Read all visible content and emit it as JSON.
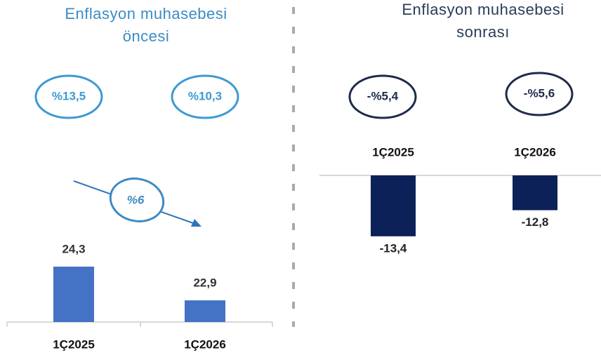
{
  "chart_data": [
    {
      "type": "bar",
      "title": "Enflasyon muhasebesi öncesi",
      "categories": [
        "1Ç2025",
        "1Ç2026"
      ],
      "values": [
        24.3,
        22.9
      ],
      "value_labels": [
        "24,3",
        "22,9"
      ],
      "color": "#4472c4",
      "ylim": [
        22,
        25
      ],
      "growth_labels": [
        "%13,5",
        "%10,3"
      ],
      "change_label": "%6"
    },
    {
      "type": "bar",
      "title": "Enflasyon muhasebesi sonrası",
      "categories": [
        "1Ç2025",
        "1Ç2026"
      ],
      "values": [
        -13.4,
        -12.8
      ],
      "value_labels": [
        "-13,4",
        "-12,8"
      ],
      "color": "#0c2158",
      "ylim": [
        -14.5,
        -12
      ],
      "growth_labels": [
        "-%5,4",
        "-%5,6"
      ]
    }
  ]
}
